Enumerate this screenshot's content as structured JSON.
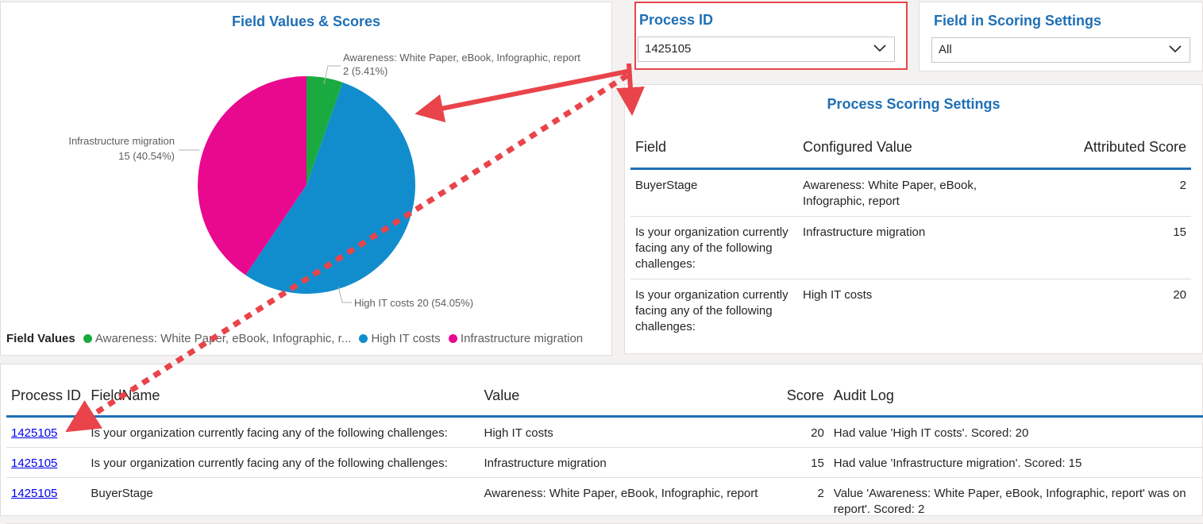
{
  "pie": {
    "title": "Field Values & Scores",
    "legend_title": "Field Values",
    "legend": [
      {
        "label": "Awareness: White Paper, eBook, Infographic, r...",
        "color": "#1aab40"
      },
      {
        "label": "High IT costs",
        "color": "#118dce"
      },
      {
        "label": "Infrastructure migration",
        "color": "#e8098f"
      }
    ],
    "labels": {
      "awareness_line1": "Awareness: White Paper, eBook, Infographic, report",
      "awareness_line2": "2 (5.41%)",
      "infra_line1": "Infrastructure migration",
      "infra_line2": "15 (40.54%)",
      "high": "High IT costs 20 (54.05%)"
    }
  },
  "chart_data": {
    "type": "pie",
    "title": "Field Values & Scores",
    "legend_title": "Field Values",
    "legend_placement": "bottom-left",
    "slices": [
      {
        "label": "Awareness: White Paper, eBook, Infographic, report",
        "value": 2,
        "percent": 5.41,
        "color": "#1aab40"
      },
      {
        "label": "High IT costs",
        "value": 20,
        "percent": 54.05,
        "color": "#118dce"
      },
      {
        "label": "Infrastructure migration",
        "value": 15,
        "percent": 40.54,
        "color": "#e8098f"
      }
    ]
  },
  "slicer_process": {
    "title": "Process ID",
    "value": "1425105"
  },
  "slicer_field": {
    "title": "Field in Scoring Settings",
    "value": "All"
  },
  "settings": {
    "title": "Process Scoring Settings",
    "headers": {
      "field": "Field",
      "configured": "Configured Value",
      "score": "Attributed Score"
    },
    "rows": [
      {
        "field": "BuyerStage",
        "value": "Awareness: White Paper, eBook, Infographic, report",
        "score": "2"
      },
      {
        "field": "Is your organization currently facing any of the following challenges:",
        "value": "Infrastructure migration",
        "score": "15"
      },
      {
        "field": "Is your organization currently facing any of the following challenges:",
        "value": "High IT costs",
        "score": "20"
      }
    ]
  },
  "audit": {
    "headers": {
      "process": "Process ID",
      "field": "FieldName",
      "value": "Value",
      "score": "Score",
      "log": "Audit Log"
    },
    "rows": [
      {
        "process": "1425105",
        "field": "Is your organization currently facing any of the following challenges:",
        "value": "High IT costs",
        "score": "20",
        "log": "Had value 'High IT costs'. Scored: 20"
      },
      {
        "process": "1425105",
        "field": "Is your organization currently facing any of the following challenges:",
        "value": "Infrastructure migration",
        "score": "15",
        "log": "Had value 'Infrastructure migration'. Scored: 15"
      },
      {
        "process": "1425105",
        "field": "BuyerStage",
        "value": "Awareness: White Paper, eBook, Infographic, report",
        "score": "2",
        "log": "Value 'Awareness: White Paper, eBook, Infographic, report' was on report'. Scored: 2"
      }
    ]
  },
  "colors": {
    "accent": "#1f6fb5",
    "annotation_red": "#e8444a"
  }
}
